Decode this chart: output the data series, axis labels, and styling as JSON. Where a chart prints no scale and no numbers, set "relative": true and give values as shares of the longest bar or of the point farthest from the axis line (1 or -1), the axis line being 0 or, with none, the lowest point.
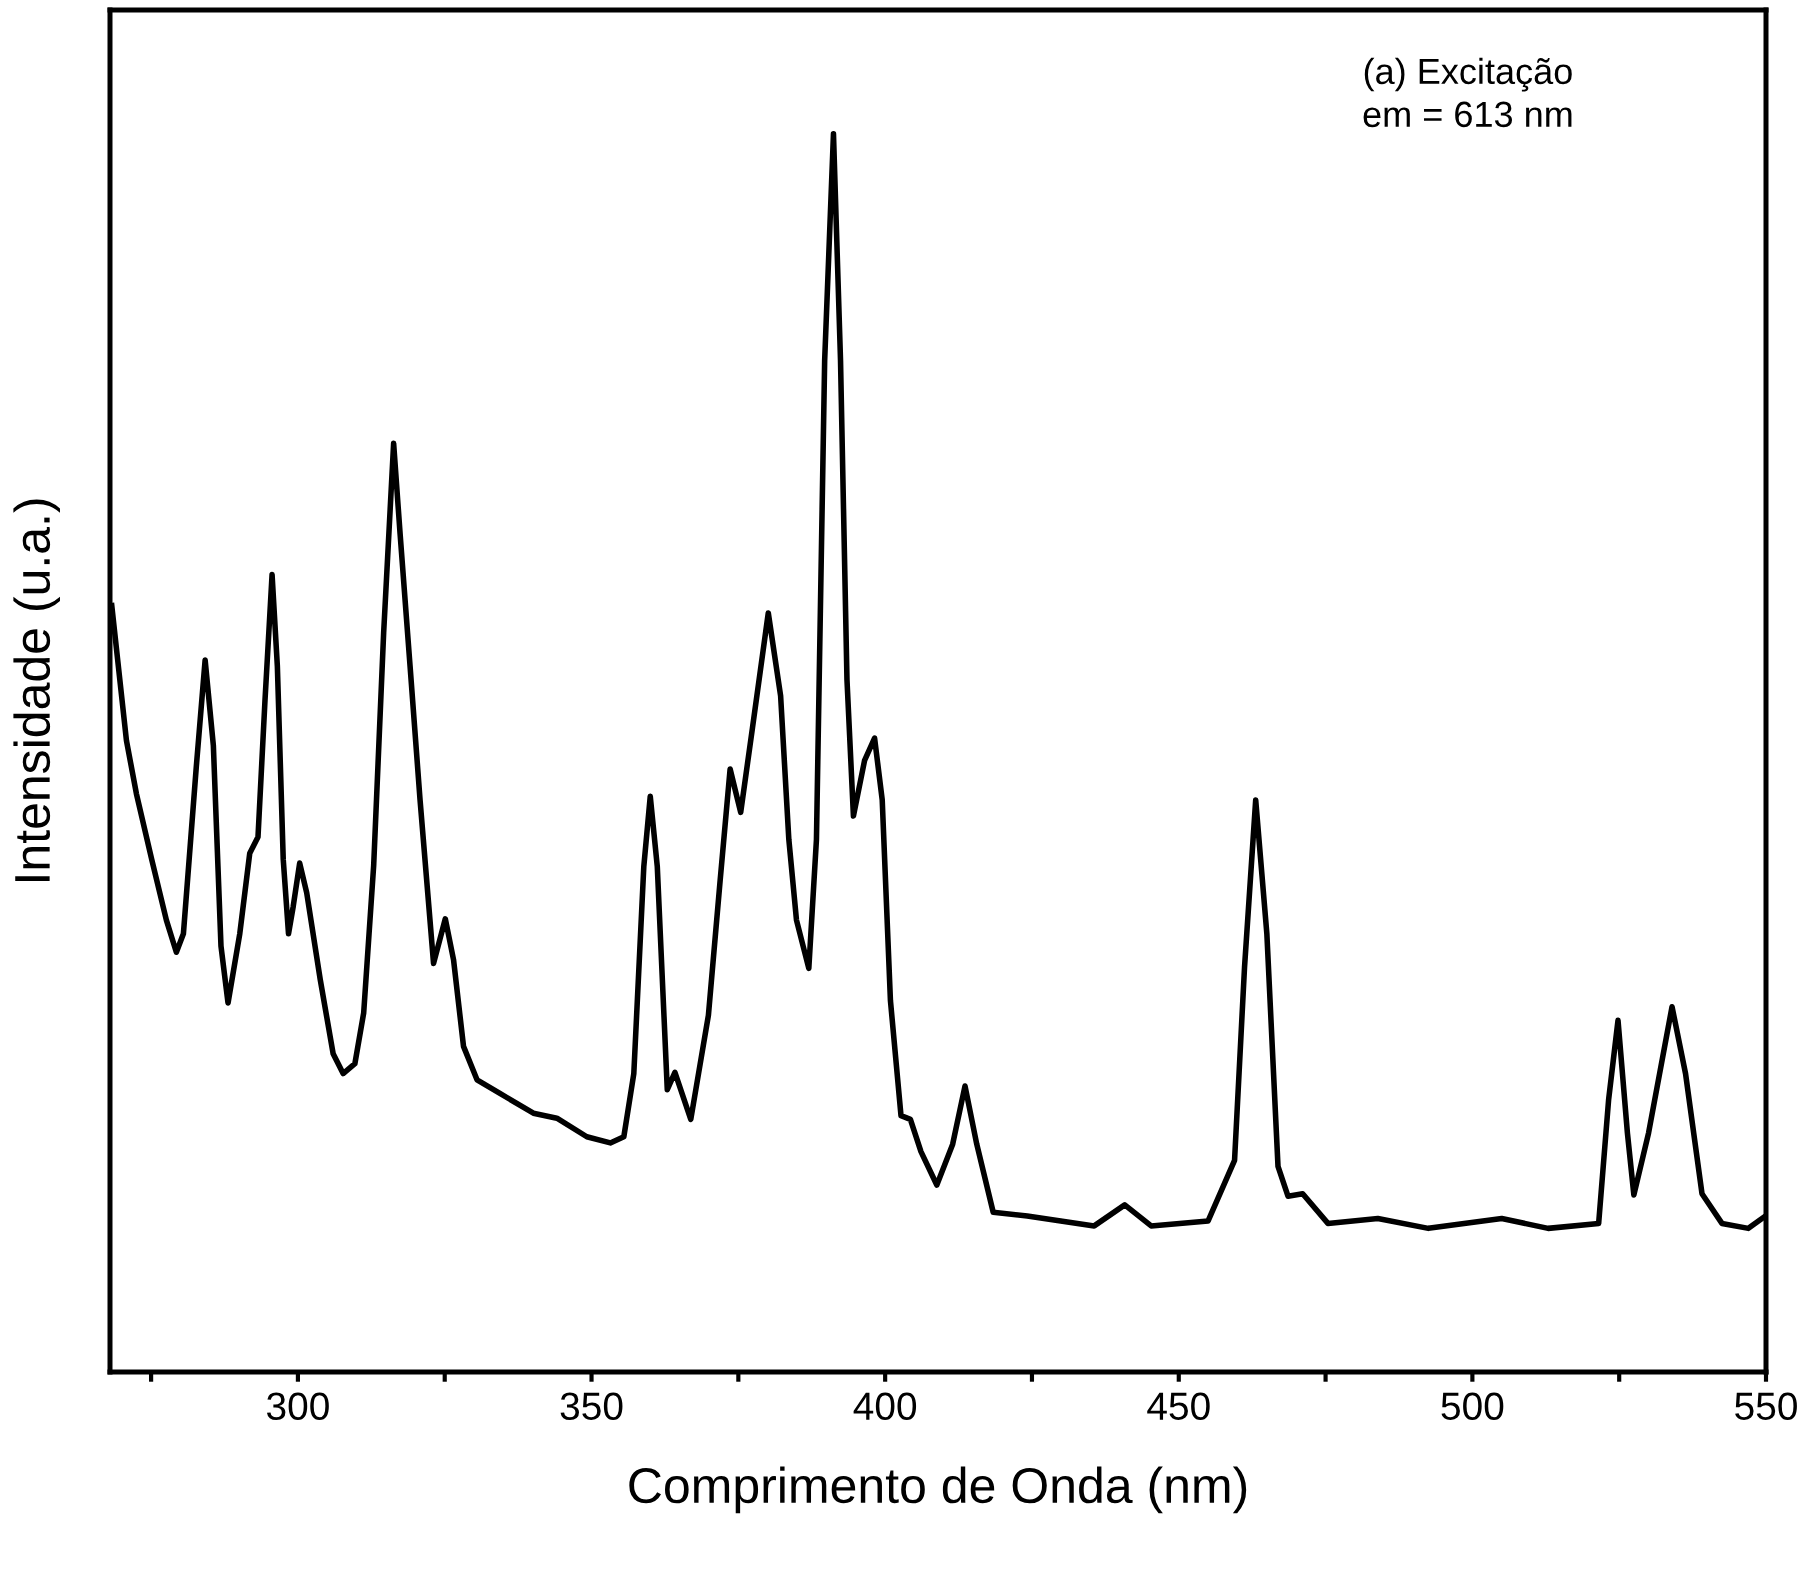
{
  "chart_data": {
    "type": "line",
    "relative": true,
    "xlabel": "Comprimento de Onda (nm)",
    "ylabel": "Intensidade (u.a.)",
    "annotations": [
      "(a) Excitação\nem = 613 nm"
    ],
    "xlim": [
      268,
      550
    ],
    "xticks": [
      {
        "value": 275,
        "label": null
      },
      300,
      {
        "value": 325,
        "label": null
      },
      350,
      {
        "value": 375,
        "label": null
      },
      400,
      {
        "value": 425,
        "label": null
      },
      450,
      {
        "value": 475,
        "label": null
      },
      500,
      {
        "value": 525,
        "label": null
      },
      550
    ],
    "tick_labels": "x",
    "grid": false,
    "series": [
      {
        "color": "#000000",
        "x": [
          268.3,
          270.8,
          272.5,
          275.1,
          277.6,
          279.3,
          280.5,
          282.7,
          284.2,
          285.6,
          286.9,
          288.1,
          290.1,
          291.8,
          293.2,
          294.4,
          295.6,
          296.5,
          297.5,
          298.4,
          299.2,
          300.3,
          301.5,
          303.8,
          306,
          307.7,
          309.7,
          311.2,
          312.9,
          314.6,
          316.3,
          317.4,
          319.1,
          320.8,
          323.1,
          325.1,
          326.5,
          328.2,
          330.5,
          334.4,
          340.1,
          344.1,
          349.2,
          353.2,
          355.5,
          357.2,
          358.9,
          360,
          361.2,
          362.9,
          364.2,
          366.9,
          369.9,
          371.9,
          373.6,
          375.4,
          377.4,
          380.1,
          382.2,
          383.6,
          384.9,
          387,
          388.3,
          389.7,
          391.2,
          392.4,
          393.5,
          394.6,
          396.5,
          398.2,
          399.5,
          400.9,
          402.7,
          404.3,
          406.1,
          408.8,
          411.5,
          413.6,
          415.6,
          418.4,
          424.2,
          435.6,
          440.8,
          445.3,
          455,
          459.5,
          461.2,
          463.1,
          465,
          466.9,
          468.6,
          471.1,
          475.4,
          483.9,
          492.5,
          505,
          512.9,
          521.5,
          523.2,
          524.8,
          526.4,
          527.5,
          530,
          534,
          536.3,
          539.1,
          542.5,
          547,
          549.9
        ],
        "values": [
          0.619,
          0.51,
          0.467,
          0.414,
          0.365,
          0.339,
          0.354,
          0.489,
          0.575,
          0.506,
          0.344,
          0.298,
          0.354,
          0.419,
          0.432,
          0.543,
          0.644,
          0.57,
          0.414,
          0.354,
          0.376,
          0.411,
          0.387,
          0.317,
          0.257,
          0.241,
          0.249,
          0.29,
          0.409,
          0.597,
          0.75,
          0.677,
          0.57,
          0.462,
          0.33,
          0.366,
          0.333,
          0.263,
          0.236,
          0.225,
          0.209,
          0.205,
          0.19,
          0.185,
          0.19,
          0.241,
          0.408,
          0.465,
          0.408,
          0.228,
          0.242,
          0.204,
          0.288,
          0.397,
          0.487,
          0.452,
          0.52,
          0.613,
          0.546,
          0.43,
          0.365,
          0.326,
          0.43,
          0.817,
          1,
          0.817,
          0.559,
          0.449,
          0.494,
          0.512,
          0.462,
          0.3,
          0.207,
          0.204,
          0.178,
          0.151,
          0.184,
          0.231,
          0.184,
          0.129,
          0.126,
          0.118,
          0.135,
          0.118,
          0.122,
          0.171,
          0.327,
          0.462,
          0.354,
          0.166,
          0.142,
          0.144,
          0.12,
          0.124,
          0.116,
          0.124,
          0.116,
          0.12,
          0.22,
          0.284,
          0.193,
          0.143,
          0.193,
          0.295,
          0.241,
          0.144,
          0.12,
          0.116,
          0.126
        ]
      }
    ]
  }
}
